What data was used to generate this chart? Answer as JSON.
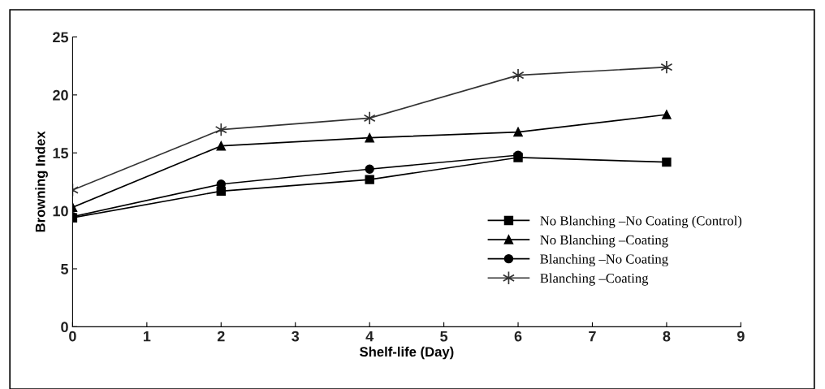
{
  "chart_data": {
    "type": "line",
    "xlabel": "Shelf-life (Day)",
    "ylabel": "Browning Index",
    "x": [
      0,
      2,
      4,
      6,
      8
    ],
    "xlim": [
      0,
      9
    ],
    "xticks": [
      0,
      1,
      2,
      3,
      4,
      5,
      6,
      7,
      8,
      9
    ],
    "ylim": [
      0,
      25
    ],
    "yticks": [
      0,
      5,
      10,
      15,
      20,
      25
    ],
    "grid": false,
    "legend": "bottom right",
    "series": [
      {
        "name": "No Blanching –No Coating (Control)",
        "color": "#000000",
        "marker": "square",
        "values": [
          9.4,
          11.7,
          12.7,
          14.6,
          14.2
        ]
      },
      {
        "name": "No Blanching –Coating",
        "color": "#000000",
        "marker": "triangle",
        "values": [
          10.3,
          15.6,
          16.3,
          16.8,
          18.3
        ]
      },
      {
        "name": "Blanching –No Coating",
        "color": "#000000",
        "marker": "circle",
        "values": [
          9.5,
          12.3,
          13.6,
          14.8,
          null
        ]
      },
      {
        "name": "Blanching –Coating",
        "color": "#333333",
        "marker": "cross",
        "values": [
          11.8,
          17.0,
          18.0,
          21.7,
          22.4
        ]
      }
    ]
  }
}
